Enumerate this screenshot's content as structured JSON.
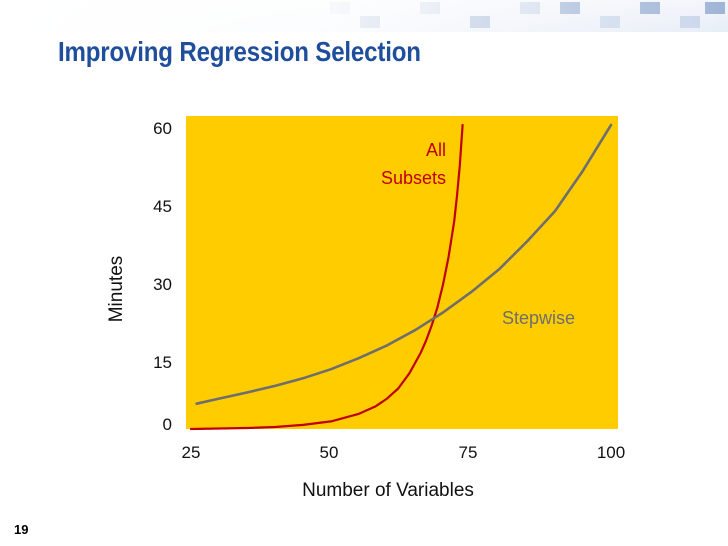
{
  "slide": {
    "title": "Improving Regression Selection",
    "page_number": "19"
  },
  "colors": {
    "title": "#1f4e9c",
    "plot_background": "#ffcc00",
    "all_subsets": "#c00000",
    "stepwise": "#6e6e6e",
    "stepwise_label": "#6e6e6e"
  },
  "chart_data": {
    "type": "line",
    "title": "",
    "xlabel": "Number of Variables",
    "ylabel": "Minutes",
    "xlim": [
      25,
      100
    ],
    "ylim": [
      0,
      60
    ],
    "x_ticks": [
      "25",
      "50",
      "75",
      "100"
    ],
    "y_ticks": [
      "0",
      "15",
      "30",
      "45",
      "60"
    ],
    "grid": false,
    "series": [
      {
        "name": "All Subsets",
        "label_lines": [
          "All",
          "Subsets"
        ],
        "x": [
          25,
          30,
          35,
          40,
          45,
          50,
          55,
          58,
          60,
          62,
          64,
          66,
          67,
          68,
          69,
          70,
          71,
          72,
          72.5,
          73,
          73.5
        ],
        "y": [
          0,
          0.1,
          0.2,
          0.4,
          0.8,
          1.5,
          3,
          4.5,
          6,
          8,
          11,
          15,
          17.5,
          20.5,
          24,
          28.5,
          34,
          41,
          46,
          52,
          60
        ]
      },
      {
        "name": "Stepwise",
        "label_lines": [
          "Stepwise"
        ],
        "x": [
          26,
          30,
          35,
          40,
          45,
          50,
          55,
          60,
          65,
          70,
          75,
          80,
          85,
          90,
          95,
          100
        ],
        "y": [
          5,
          6,
          7.2,
          8.5,
          10,
          11.8,
          14,
          16.5,
          19.5,
          23,
          27,
          31.5,
          37,
          43,
          51,
          60
        ]
      }
    ]
  }
}
